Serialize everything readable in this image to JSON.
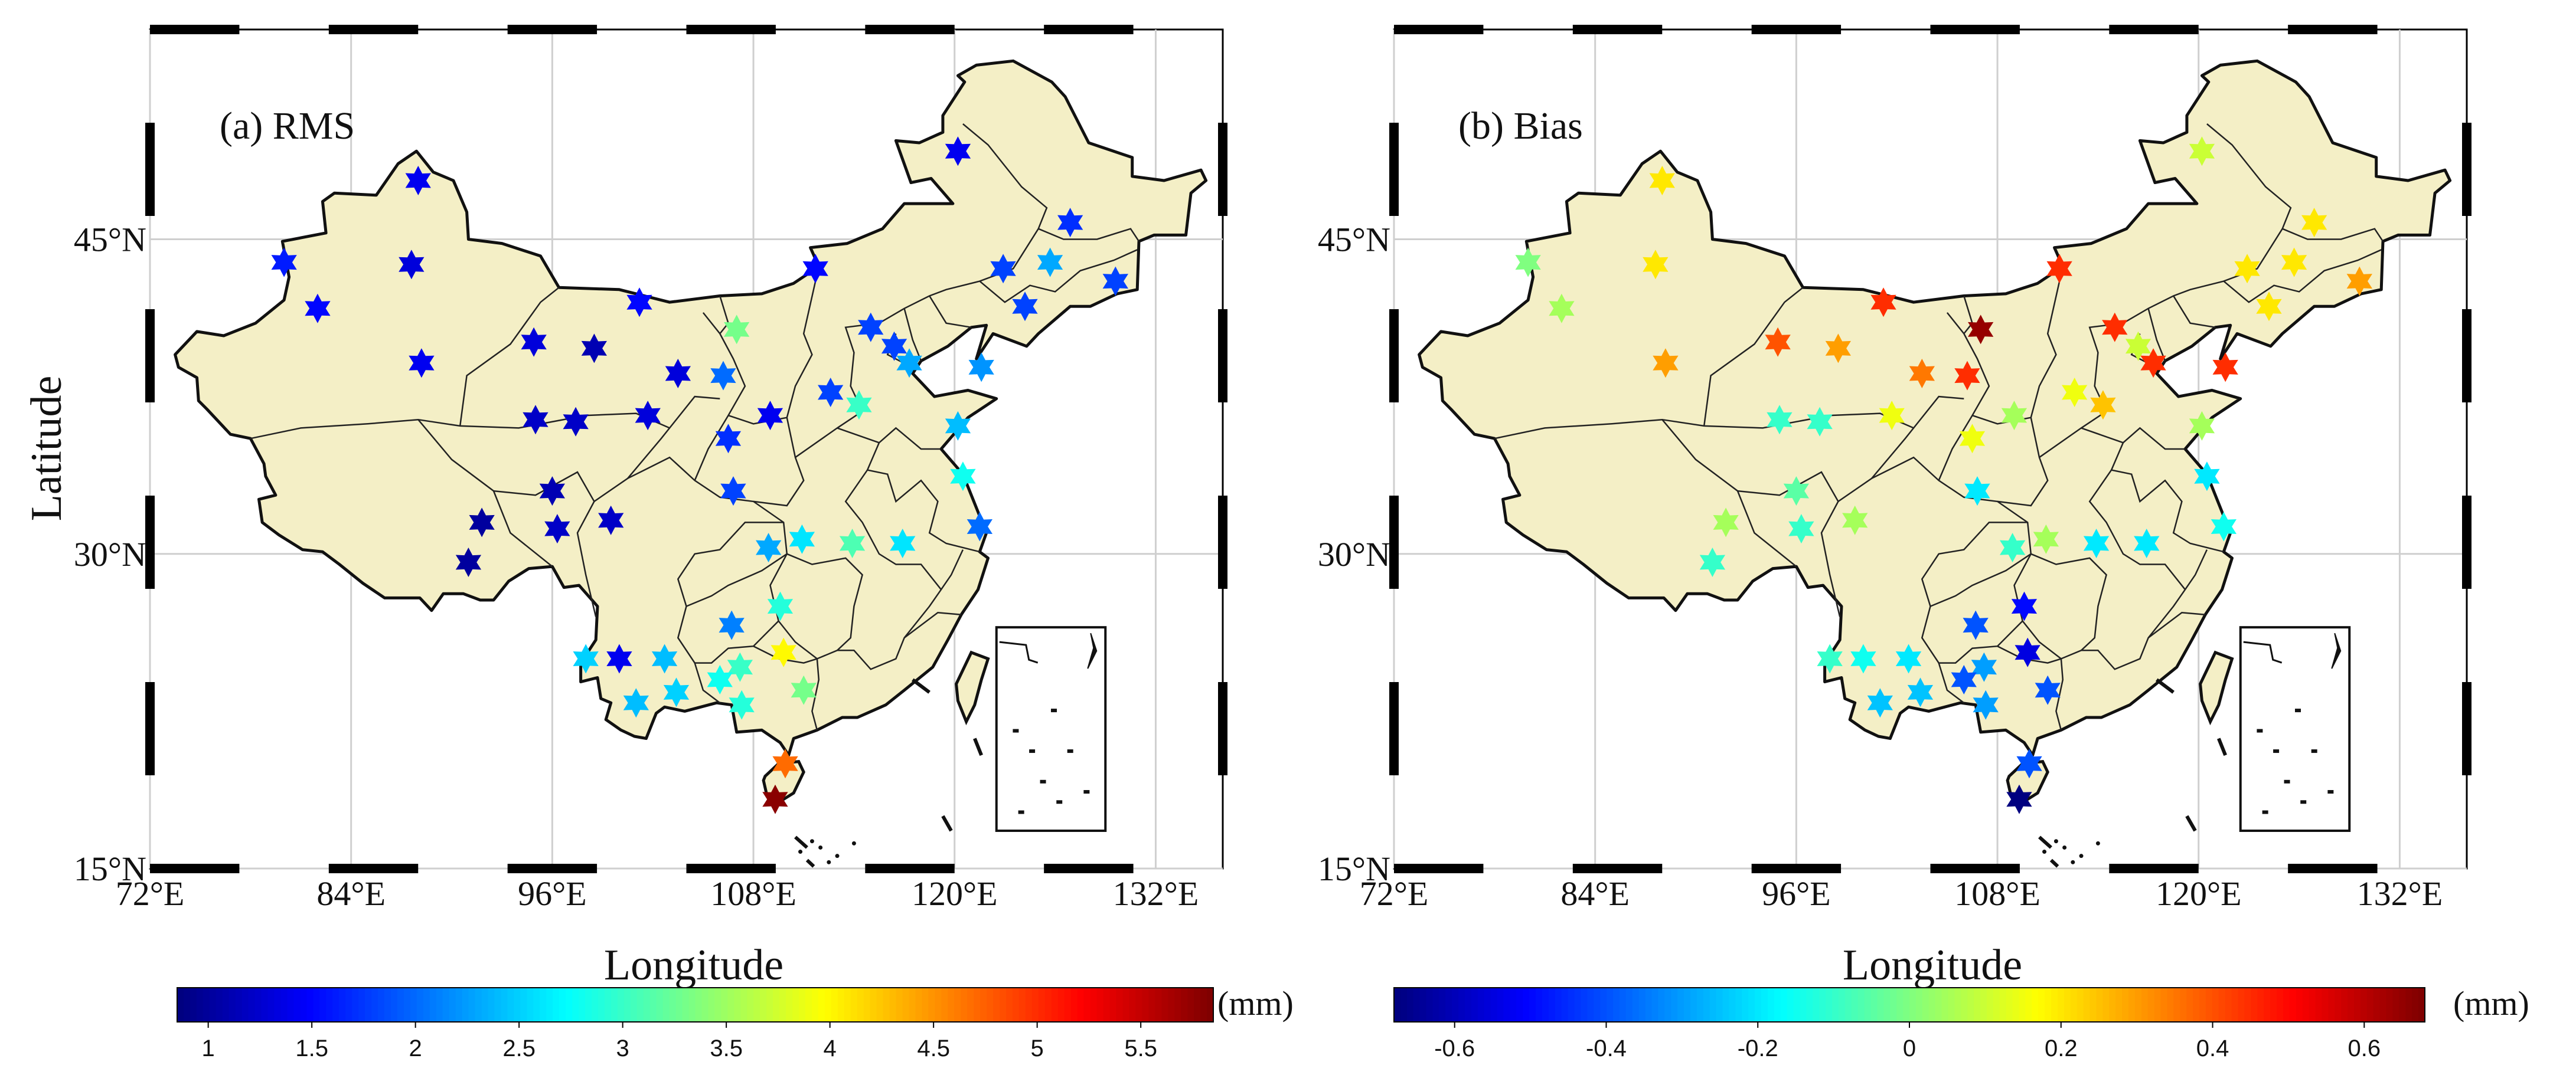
{
  "figure": {
    "y_axis_label": "Latitude",
    "x_axis_label": "Longitude",
    "lon_ticks": [
      "72°E",
      "84°E",
      "96°E",
      "108°E",
      "120°E",
      "132°E"
    ],
    "lat_ticks": [
      "45°N",
      "30°N",
      "15°N"
    ]
  },
  "chart_data": {
    "type": "scatter-map",
    "lon_range": [
      72,
      136
    ],
    "lat_range": [
      15,
      55
    ],
    "stations": [
      {
        "lon": 80.0,
        "lat": 43.9
      },
      {
        "lon": 82.0,
        "lat": 41.7
      },
      {
        "lon": 88.0,
        "lat": 47.8
      },
      {
        "lon": 87.6,
        "lat": 43.8
      },
      {
        "lon": 88.2,
        "lat": 39.1
      },
      {
        "lon": 91.0,
        "lat": 29.6
      },
      {
        "lon": 91.8,
        "lat": 31.5
      },
      {
        "lon": 94.9,
        "lat": 40.1
      },
      {
        "lon": 95.0,
        "lat": 36.4
      },
      {
        "lon": 96.0,
        "lat": 33.0
      },
      {
        "lon": 96.3,
        "lat": 31.2
      },
      {
        "lon": 97.4,
        "lat": 36.3
      },
      {
        "lon": 98.5,
        "lat": 39.8
      },
      {
        "lon": 99.5,
        "lat": 31.6
      },
      {
        "lon": 101.2,
        "lat": 42.0
      },
      {
        "lon": 101.7,
        "lat": 36.6
      },
      {
        "lon": 103.5,
        "lat": 38.6
      },
      {
        "lon": 98.0,
        "lat": 25.0
      },
      {
        "lon": 100.0,
        "lat": 25.0
      },
      {
        "lon": 102.7,
        "lat": 25.0
      },
      {
        "lon": 101.0,
        "lat": 22.9
      },
      {
        "lon": 103.4,
        "lat": 23.4
      },
      {
        "lon": 106.2,
        "lat": 38.5
      },
      {
        "lon": 107.0,
        "lat": 40.7
      },
      {
        "lon": 106.5,
        "lat": 35.5
      },
      {
        "lon": 106.8,
        "lat": 33.0
      },
      {
        "lon": 109.0,
        "lat": 36.6
      },
      {
        "lon": 112.6,
        "lat": 37.7
      },
      {
        "lon": 114.3,
        "lat": 37.1
      },
      {
        "lon": 111.7,
        "lat": 43.6
      },
      {
        "lon": 115.0,
        "lat": 40.8
      },
      {
        "lon": 116.4,
        "lat": 39.9
      },
      {
        "lon": 117.3,
        "lat": 39.1
      },
      {
        "lon": 108.9,
        "lat": 30.3
      },
      {
        "lon": 110.9,
        "lat": 30.7
      },
      {
        "lon": 113.9,
        "lat": 30.5
      },
      {
        "lon": 116.9,
        "lat": 30.5
      },
      {
        "lon": 106.7,
        "lat": 26.6
      },
      {
        "lon": 109.6,
        "lat": 27.5
      },
      {
        "lon": 107.2,
        "lat": 24.6
      },
      {
        "lon": 106.0,
        "lat": 24.0
      },
      {
        "lon": 107.3,
        "lat": 22.8
      },
      {
        "lon": 109.8,
        "lat": 25.3
      },
      {
        "lon": 111.0,
        "lat": 23.5
      },
      {
        "lon": 109.9,
        "lat": 20.0
      },
      {
        "lon": 109.3,
        "lat": 18.3
      },
      {
        "lon": 120.2,
        "lat": 36.1
      },
      {
        "lon": 120.5,
        "lat": 33.7
      },
      {
        "lon": 121.5,
        "lat": 31.3
      },
      {
        "lon": 121.6,
        "lat": 38.9
      },
      {
        "lon": 120.2,
        "lat": 49.2
      },
      {
        "lon": 122.9,
        "lat": 43.6
      },
      {
        "lon": 124.2,
        "lat": 41.8
      },
      {
        "lon": 125.7,
        "lat": 43.9
      },
      {
        "lon": 126.9,
        "lat": 45.8
      },
      {
        "lon": 129.6,
        "lat": 43.0
      }
    ],
    "panels": [
      {
        "title": "(a) RMS",
        "unit": "(mm)",
        "vmin": 0.85,
        "vmax": 5.85,
        "colorbar_ticks": [
          "1",
          "1.5",
          "2",
          "2.5",
          "3",
          "3.5",
          "4",
          "4.5",
          "5",
          "5.5"
        ],
        "colorbar_tick_values": [
          1,
          1.5,
          2,
          2.5,
          3,
          3.5,
          4,
          4.5,
          5,
          5.5
        ],
        "values": [
          1.6,
          1.5,
          1.4,
          1.3,
          1.4,
          1.0,
          1.0,
          1.3,
          1.2,
          1.1,
          1.2,
          1.2,
          1.1,
          1.2,
          1.5,
          1.3,
          1.3,
          2.5,
          1.4,
          2.4,
          2.4,
          2.5,
          2.0,
          3.3,
          1.7,
          1.8,
          1.4,
          1.8,
          3.0,
          1.5,
          1.8,
          1.8,
          2.3,
          2.3,
          2.6,
          3.1,
          2.6,
          2.1,
          2.9,
          3.0,
          2.8,
          2.9,
          4.0,
          3.3,
          4.7,
          5.8,
          2.4,
          2.8,
          2.0,
          2.2,
          1.4,
          1.8,
          1.8,
          2.3,
          1.7,
          1.8
        ]
      },
      {
        "title": "(b) Bias",
        "unit": "(mm)",
        "vmin": -0.68,
        "vmax": 0.68,
        "colorbar_ticks": [
          "-0.6",
          "-0.4",
          "-0.2",
          "0",
          "0.2",
          "0.4",
          "0.6"
        ],
        "colorbar_tick_values": [
          -0.6,
          -0.4,
          -0.2,
          0,
          0.2,
          0.4,
          0.6
        ],
        "values": [
          0.0,
          0.05,
          0.2,
          0.2,
          0.3,
          -0.1,
          0.05,
          0.4,
          -0.1,
          -0.05,
          -0.1,
          -0.1,
          0.3,
          0.05,
          0.45,
          0.15,
          0.35,
          -0.1,
          -0.15,
          -0.2,
          -0.25,
          -0.25,
          0.45,
          0.65,
          0.15,
          -0.2,
          0.05,
          0.15,
          0.25,
          0.45,
          0.45,
          0.1,
          0.45,
          -0.1,
          0.05,
          -0.2,
          -0.2,
          -0.4,
          -0.5,
          -0.3,
          -0.4,
          -0.3,
          -0.55,
          -0.4,
          -0.4,
          -0.68,
          0.05,
          -0.2,
          -0.15,
          0.45,
          0.1,
          0.2,
          0.2,
          0.2,
          0.2,
          0.3
        ]
      }
    ]
  }
}
